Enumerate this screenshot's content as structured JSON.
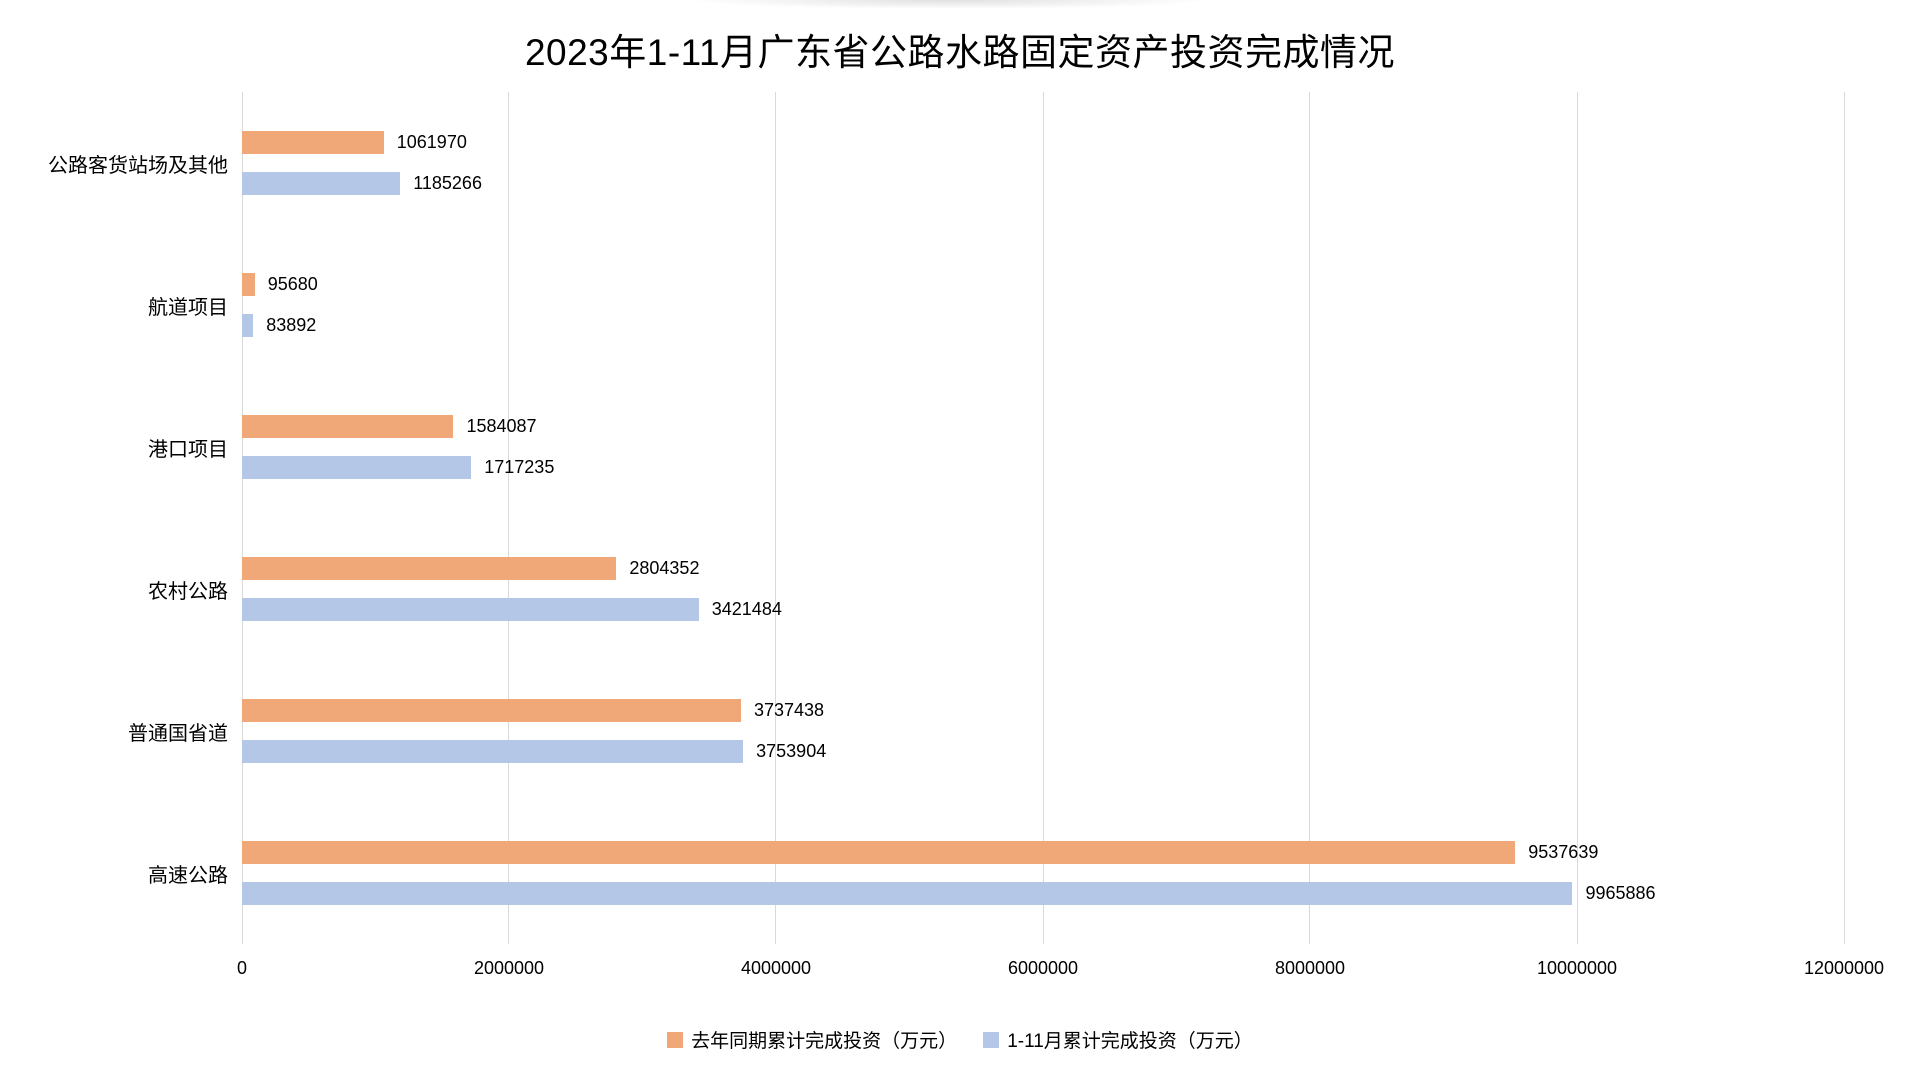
{
  "chart_data": {
    "type": "bar",
    "orientation": "horizontal",
    "title": "2023年1-11月广东省公路水路固定资产投资完成情况",
    "categories_order": "top-to-bottom",
    "categories": [
      "公路客货站场及其他",
      "航道项目",
      "港口项目",
      "农村公路",
      "普通国省道",
      "高速公路"
    ],
    "series": [
      {
        "name": "去年同期累计完成投资（万元）",
        "color": "#F0A878",
        "values": [
          1061970,
          95680,
          1584087,
          2804352,
          3737438,
          9537639
        ]
      },
      {
        "name": "1-11月累计完成投资（万元）",
        "color": "#B4C7E7",
        "values": [
          1185266,
          83892,
          1717235,
          3421484,
          3753904,
          9965886
        ]
      }
    ],
    "xlim": [
      0,
      12000000
    ],
    "x_ticks": [
      0,
      2000000,
      4000000,
      6000000,
      8000000,
      10000000,
      12000000
    ],
    "x_tick_labels": [
      "0",
      "2000000",
      "4000000",
      "6000000",
      "8000000",
      "10000000",
      "12000000"
    ],
    "grid": "vertical-only",
    "value_labels": "outside-end",
    "legend_position": "bottom-center"
  },
  "colors": {
    "background": "#FFFFFF",
    "gridline": "#D9D9D9",
    "text": "#000000",
    "series1": "#F0A878",
    "series2": "#B4C7E7"
  }
}
